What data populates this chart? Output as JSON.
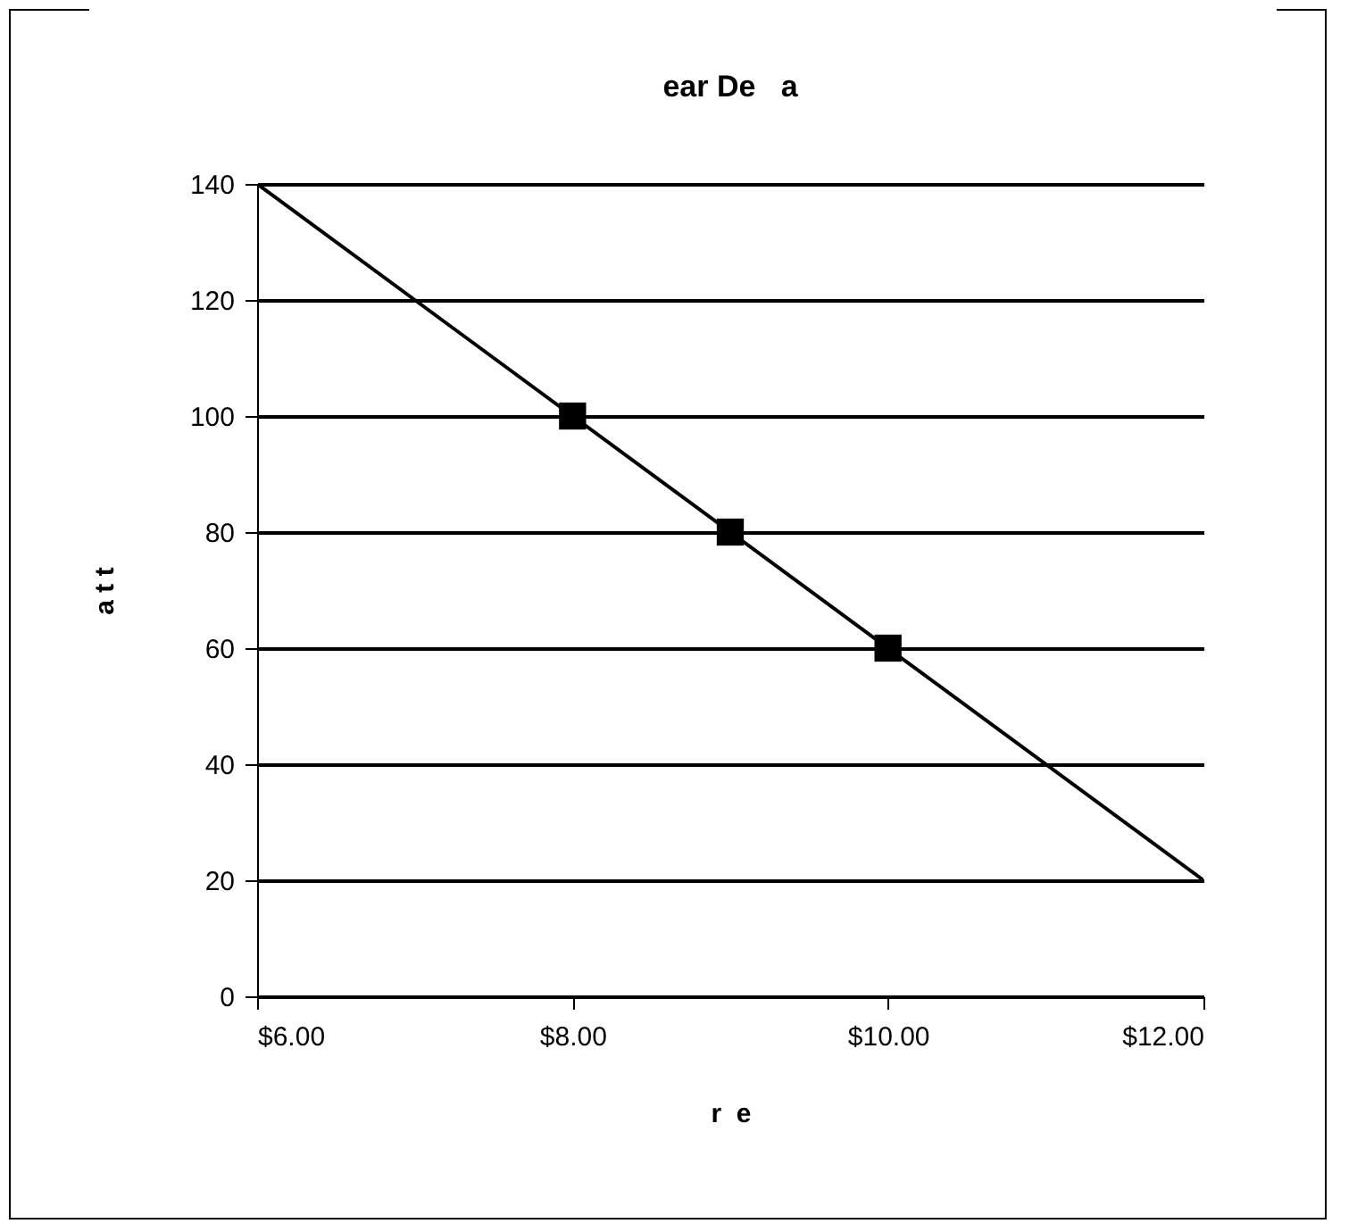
{
  "chart_data": {
    "type": "line",
    "title": "ear De   a",
    "xlabel": "r  e",
    "ylabel": "a t t",
    "xlim": [
      6,
      12
    ],
    "xticks": [
      {
        "value": 6,
        "label": "$6.00"
      },
      {
        "value": 8,
        "label": "$8.00"
      },
      {
        "value": 10,
        "label": "$10.00"
      },
      {
        "value": 12,
        "label": "$12.00"
      }
    ],
    "ylim": [
      0,
      140
    ],
    "yticks": [
      0,
      20,
      40,
      60,
      80,
      100,
      120,
      140
    ],
    "grid": "y",
    "series": [
      {
        "color": "#000000",
        "x": [
          6,
          12
        ],
        "values": [
          140,
          20
        ],
        "marker": "none",
        "line_style": "solid"
      },
      {
        "type": "scatter",
        "color": "#000000",
        "x": [
          8,
          9,
          10
        ],
        "values": [
          100,
          80,
          60
        ],
        "marker": "square"
      }
    ]
  }
}
